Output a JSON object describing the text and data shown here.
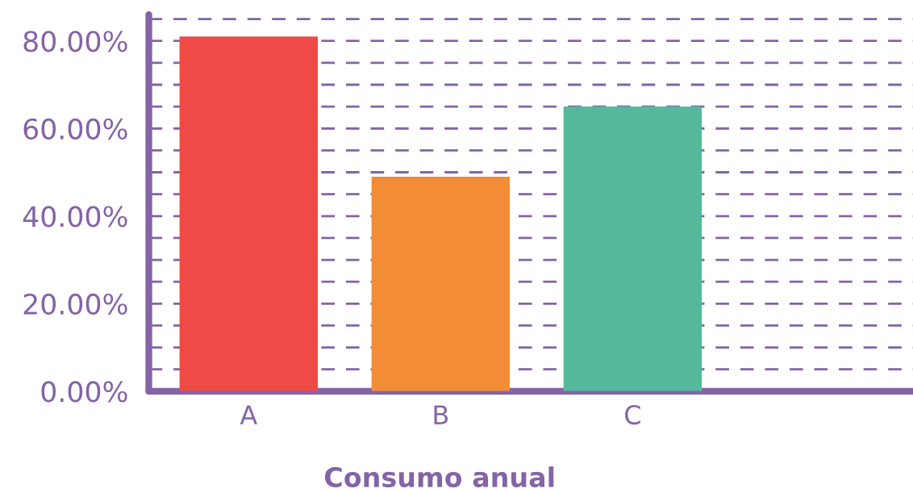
{
  "chart_data": {
    "type": "bar",
    "xlabel": "Consumo anual",
    "categories": [
      "A",
      "B",
      "C"
    ],
    "values": [
      81,
      49,
      65
    ],
    "colors": [
      "#ef4a46",
      "#f28c36",
      "#53b99a"
    ],
    "ylim": [
      0,
      86
    ],
    "yticks": [
      {
        "value": 0,
        "label": "0.00%"
      },
      {
        "value": 5,
        "label": null
      },
      {
        "value": 10,
        "label": null
      },
      {
        "value": 15,
        "label": null
      },
      {
        "value": 20,
        "label": "20.00%"
      },
      {
        "value": 25,
        "label": null
      },
      {
        "value": 30,
        "label": null
      },
      {
        "value": 35,
        "label": null
      },
      {
        "value": 40,
        "label": "40.00%"
      },
      {
        "value": 45,
        "label": null
      },
      {
        "value": 50,
        "label": null
      },
      {
        "value": 55,
        "label": null
      },
      {
        "value": 60,
        "label": "60.00%"
      },
      {
        "value": 65,
        "label": null
      },
      {
        "value": 70,
        "label": null
      },
      {
        "value": 75,
        "label": null
      },
      {
        "value": 80,
        "label": "80.00%"
      },
      {
        "value": 85,
        "label": null
      }
    ],
    "grid": "y"
  }
}
